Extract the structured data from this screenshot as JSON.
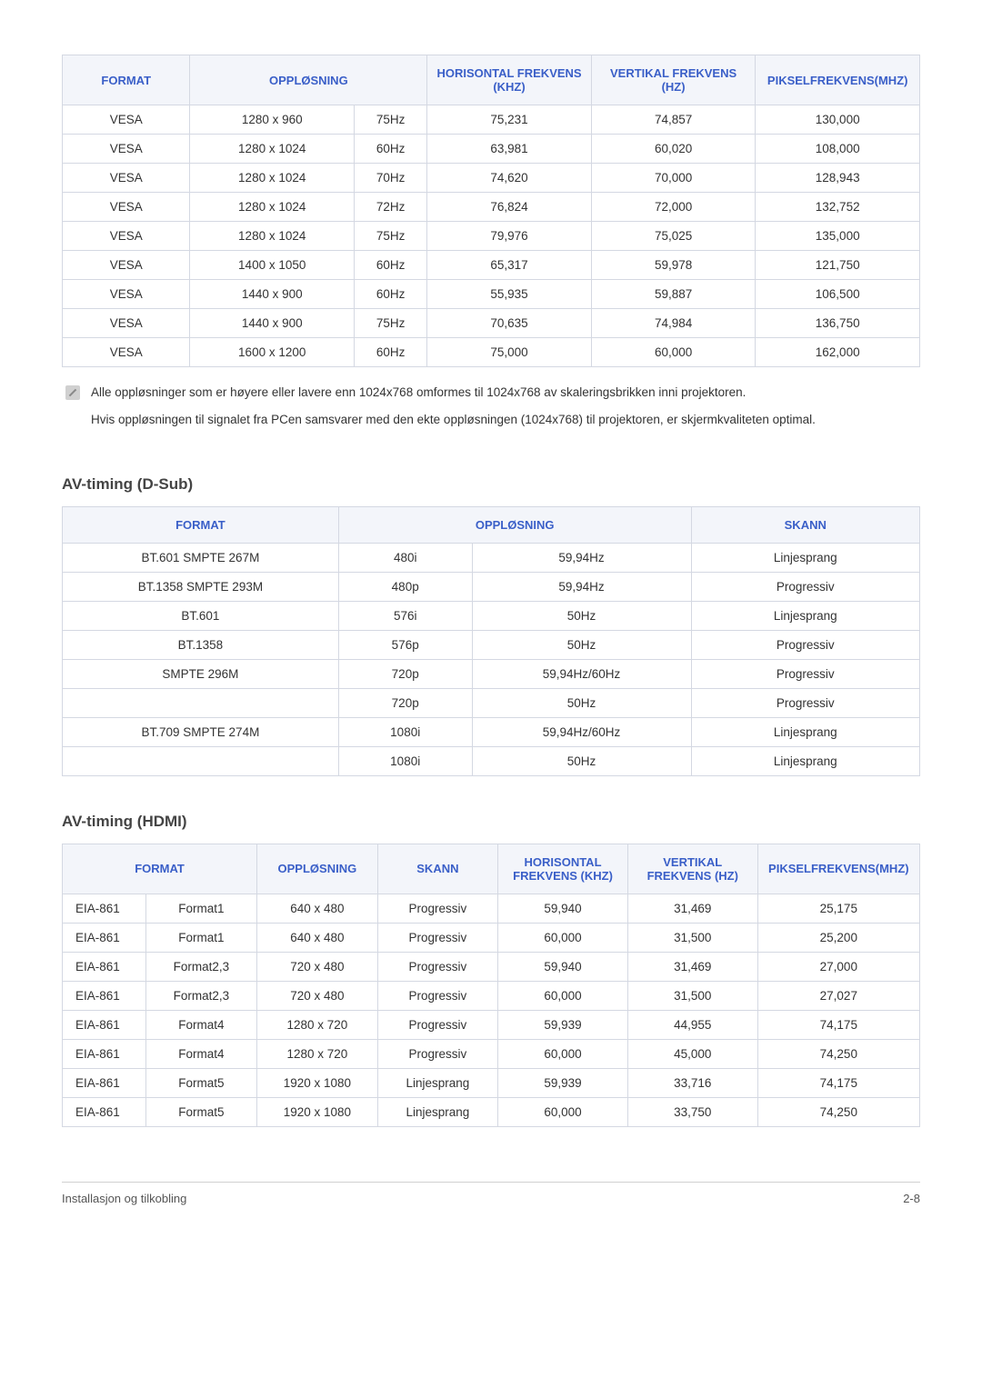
{
  "table1": {
    "headers": [
      "FORMAT",
      "OPPLØSNING",
      "HORISONTAL FREKVENS (KHZ)",
      "VERTIKAL FREKVENS (HZ)",
      "PIKSELFREKVENS(MHZ)"
    ],
    "rows": [
      [
        "VESA",
        "1280 x 960",
        "75Hz",
        "75,231",
        "74,857",
        "130,000"
      ],
      [
        "VESA",
        "1280 x 1024",
        "60Hz",
        "63,981",
        "60,020",
        "108,000"
      ],
      [
        "VESA",
        "1280 x 1024",
        "70Hz",
        "74,620",
        "70,000",
        "128,943"
      ],
      [
        "VESA",
        "1280 x 1024",
        "72Hz",
        "76,824",
        "72,000",
        "132,752"
      ],
      [
        "VESA",
        "1280 x 1024",
        "75Hz",
        "79,976",
        "75,025",
        "135,000"
      ],
      [
        "VESA",
        "1400 x 1050",
        "60Hz",
        "65,317",
        "59,978",
        "121,750"
      ],
      [
        "VESA",
        "1440 x 900",
        "60Hz",
        "55,935",
        "59,887",
        "106,500"
      ],
      [
        "VESA",
        "1440 x 900",
        "75Hz",
        "70,635",
        "74,984",
        "136,750"
      ],
      [
        "VESA",
        "1600 x 1200",
        "60Hz",
        "75,000",
        "60,000",
        "162,000"
      ]
    ],
    "col_widths_pct": [
      14,
      18,
      8,
      18,
      18,
      18
    ]
  },
  "note": {
    "p1": "Alle oppløsninger som er høyere eller lavere enn 1024x768 omformes til 1024x768 av skaleringsbrikken inni projektoren.",
    "p2": "Hvis oppløsningen til signalet fra PCen samsvarer med den ekte oppløsningen (1024x768) til projektoren, er skjermkvaliteten optimal."
  },
  "section2_title": "AV-timing (D-Sub)",
  "table2": {
    "headers": [
      "FORMAT",
      "OPPLØSNING",
      "SKANN"
    ],
    "rows": [
      [
        "BT.601 SMPTE 267M",
        "480i",
        "59,94Hz",
        "Linjesprang"
      ],
      [
        "BT.1358 SMPTE 293M",
        "480p",
        "59,94Hz",
        "Progressiv"
      ],
      [
        "BT.601",
        "576i",
        "50Hz",
        "Linjesprang"
      ],
      [
        "BT.1358",
        "576p",
        "50Hz",
        "Progressiv"
      ],
      [
        "SMPTE 296M",
        "720p",
        "59,94Hz/60Hz",
        "Progressiv"
      ],
      [
        "",
        "720p",
        "50Hz",
        "Progressiv"
      ],
      [
        "BT.709 SMPTE 274M",
        "1080i",
        "59,94Hz/60Hz",
        "Linjesprang"
      ],
      [
        "",
        "1080i",
        "50Hz",
        "Linjesprang"
      ]
    ],
    "col_widths_pct": [
      29,
      14,
      23,
      24
    ]
  },
  "section3_title": "AV-timing (HDMI)",
  "table3": {
    "headers": [
      "FORMAT",
      "OPPLØSNING",
      "SKANN",
      "HORISONTAL FREKVENS (KHZ)",
      "VERTIKAL FREKVENS (HZ)",
      "PIKSELFREKVENS(MHZ)"
    ],
    "rows": [
      [
        "EIA-861",
        "Format1",
        "640 x 480",
        "Progressiv",
        "59,940",
        "31,469",
        "25,175"
      ],
      [
        "EIA-861",
        "Format1",
        "640 x 480",
        "Progressiv",
        "60,000",
        "31,500",
        "25,200"
      ],
      [
        "EIA-861",
        "Format2,3",
        "720 x 480",
        "Progressiv",
        "59,940",
        "31,469",
        "27,000"
      ],
      [
        "EIA-861",
        "Format2,3",
        "720 x 480",
        "Progressiv",
        "60,000",
        "31,500",
        "27,027"
      ],
      [
        "EIA-861",
        "Format4",
        "1280 x 720",
        "Progressiv",
        "59,939",
        "44,955",
        "74,175"
      ],
      [
        "EIA-861",
        "Format4",
        "1280 x 720",
        "Progressiv",
        "60,000",
        "45,000",
        "74,250"
      ],
      [
        "EIA-861",
        "Format5",
        "1920 x 1080",
        "Linjesprang",
        "59,939",
        "33,716",
        "74,175"
      ],
      [
        "EIA-861",
        "Format5",
        "1920 x 1080",
        "Linjesprang",
        "60,000",
        "33,750",
        "74,250"
      ]
    ],
    "col_widths_pct": [
      9,
      12,
      13,
      13,
      14,
      14,
      14
    ]
  },
  "footer_left": "Installasjon og tilkobling",
  "footer_right": "2-8",
  "colors": {
    "header_bg": "#f3f5fa",
    "header_text": "#3a5fc8",
    "border": "#d4d8e2",
    "body_text": "#333333"
  }
}
